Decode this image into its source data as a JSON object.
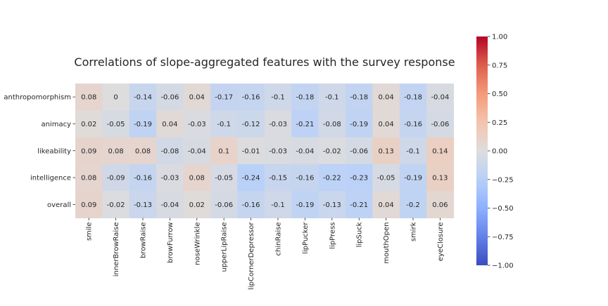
{
  "chart_data": {
    "type": "heatmap",
    "title": "Correlations of slope-aggregated features with the survey response",
    "rows": [
      "anthropomorphism",
      "animacy",
      "likeability",
      "intelligence",
      "overall"
    ],
    "columns": [
      "smile",
      "innerBrowRaise",
      "browRaise",
      "browFurrow",
      "noseWrinkle",
      "upperLipRaise",
      "lipCornerDepressor",
      "chinRaise",
      "lipPucker",
      "lipPress",
      "lipSuck",
      "mouthOpen",
      "smirk",
      "eyeClosure"
    ],
    "values": [
      [
        0.08,
        0,
        -0.14,
        -0.06,
        0.04,
        -0.17,
        -0.16,
        -0.1,
        -0.18,
        -0.1,
        -0.18,
        0.04,
        -0.18,
        -0.04
      ],
      [
        0.02,
        -0.05,
        -0.19,
        0.04,
        -0.03,
        -0.1,
        -0.12,
        -0.03,
        -0.21,
        -0.08,
        -0.19,
        0.04,
        -0.16,
        -0.06
      ],
      [
        0.09,
        0.08,
        0.08,
        -0.08,
        -0.04,
        0.1,
        -0.01,
        -0.03,
        -0.04,
        -0.02,
        -0.06,
        0.13,
        -0.1,
        0.14
      ],
      [
        0.08,
        -0.09,
        -0.16,
        -0.03,
        0.08,
        -0.05,
        -0.24,
        -0.15,
        -0.16,
        -0.22,
        -0.23,
        -0.05,
        -0.19,
        0.13
      ],
      [
        0.09,
        -0.02,
        -0.13,
        -0.04,
        0.02,
        -0.06,
        -0.16,
        -0.1,
        -0.19,
        -0.13,
        -0.21,
        0.04,
        -0.2,
        0.06
      ]
    ],
    "colormap": "coolwarm",
    "vmin": -1.0,
    "vmax": 1.0,
    "colorbar_ticks": [
      "1.00",
      "0.75",
      "0.50",
      "0.25",
      "0.00",
      "−0.25",
      "−0.50",
      "−0.75",
      "−1.00"
    ],
    "colorbar_tick_values": [
      1.0,
      0.75,
      0.5,
      0.25,
      0.0,
      -0.25,
      -0.5,
      -0.75,
      -1.0
    ]
  }
}
